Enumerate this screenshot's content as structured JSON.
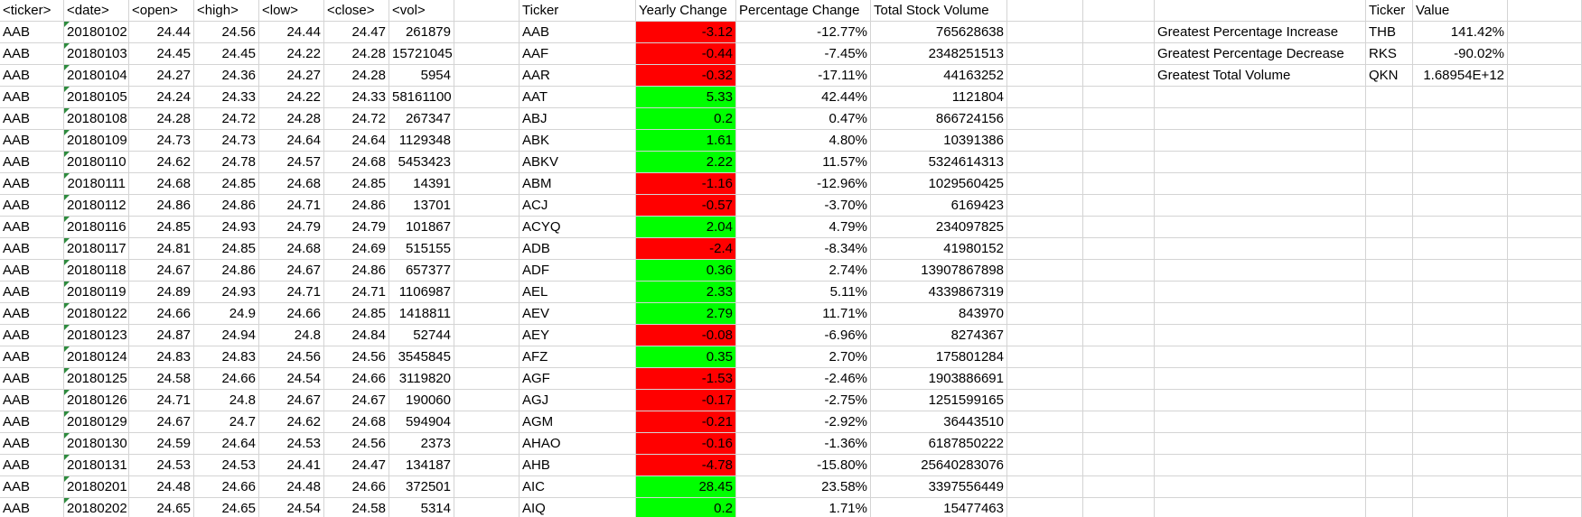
{
  "raw_headers": [
    "<ticker>",
    "<date>",
    "<open>",
    "<high>",
    "<low>",
    "<close>",
    "<vol>"
  ],
  "raw_rows": [
    [
      "AAB",
      "20180102",
      "24.44",
      "24.56",
      "24.44",
      "24.47",
      "261879"
    ],
    [
      "AAB",
      "20180103",
      "24.45",
      "24.45",
      "24.22",
      "24.28",
      "15721045"
    ],
    [
      "AAB",
      "20180104",
      "24.27",
      "24.36",
      "24.27",
      "24.28",
      "5954"
    ],
    [
      "AAB",
      "20180105",
      "24.24",
      "24.33",
      "24.22",
      "24.33",
      "58161100"
    ],
    [
      "AAB",
      "20180108",
      "24.28",
      "24.72",
      "24.28",
      "24.72",
      "267347"
    ],
    [
      "AAB",
      "20180109",
      "24.73",
      "24.73",
      "24.64",
      "24.64",
      "1129348"
    ],
    [
      "AAB",
      "20180110",
      "24.62",
      "24.78",
      "24.57",
      "24.68",
      "5453423"
    ],
    [
      "AAB",
      "20180111",
      "24.68",
      "24.85",
      "24.68",
      "24.85",
      "14391"
    ],
    [
      "AAB",
      "20180112",
      "24.86",
      "24.86",
      "24.71",
      "24.86",
      "13701"
    ],
    [
      "AAB",
      "20180116",
      "24.85",
      "24.93",
      "24.79",
      "24.79",
      "101867"
    ],
    [
      "AAB",
      "20180117",
      "24.81",
      "24.85",
      "24.68",
      "24.69",
      "515155"
    ],
    [
      "AAB",
      "20180118",
      "24.67",
      "24.86",
      "24.67",
      "24.86",
      "657377"
    ],
    [
      "AAB",
      "20180119",
      "24.89",
      "24.93",
      "24.71",
      "24.71",
      "1106987"
    ],
    [
      "AAB",
      "20180122",
      "24.66",
      "24.9",
      "24.66",
      "24.85",
      "1418811"
    ],
    [
      "AAB",
      "20180123",
      "24.87",
      "24.94",
      "24.8",
      "24.84",
      "52744"
    ],
    [
      "AAB",
      "20180124",
      "24.83",
      "24.83",
      "24.56",
      "24.56",
      "3545845"
    ],
    [
      "AAB",
      "20180125",
      "24.58",
      "24.66",
      "24.54",
      "24.66",
      "3119820"
    ],
    [
      "AAB",
      "20180126",
      "24.71",
      "24.8",
      "24.67",
      "24.67",
      "190060"
    ],
    [
      "AAB",
      "20180129",
      "24.67",
      "24.7",
      "24.62",
      "24.68",
      "594904"
    ],
    [
      "AAB",
      "20180130",
      "24.59",
      "24.64",
      "24.53",
      "24.56",
      "2373"
    ],
    [
      "AAB",
      "20180131",
      "24.53",
      "24.53",
      "24.41",
      "24.47",
      "134187"
    ],
    [
      "AAB",
      "20180201",
      "24.48",
      "24.66",
      "24.48",
      "24.66",
      "372501"
    ],
    [
      "AAB",
      "20180202",
      "24.65",
      "24.65",
      "24.54",
      "24.58",
      "5314"
    ]
  ],
  "summary_headers": [
    "Ticker",
    "Yearly Change",
    "Percentage Change",
    "Total Stock Volume"
  ],
  "summary_rows": [
    [
      "AAB",
      "-3.12",
      "-12.77%",
      "765628638"
    ],
    [
      "AAF",
      "-0.44",
      "-7.45%",
      "2348251513"
    ],
    [
      "AAR",
      "-0.32",
      "-17.11%",
      "44163252"
    ],
    [
      "AAT",
      "5.33",
      "42.44%",
      "1121804"
    ],
    [
      "ABJ",
      "0.2",
      "0.47%",
      "866724156"
    ],
    [
      "ABK",
      "1.61",
      "4.80%",
      "10391386"
    ],
    [
      "ABKV",
      "2.22",
      "11.57%",
      "5324614313"
    ],
    [
      "ABM",
      "-1.16",
      "-12.96%",
      "1029560425"
    ],
    [
      "ACJ",
      "-0.57",
      "-3.70%",
      "6169423"
    ],
    [
      "ACYQ",
      "2.04",
      "4.79%",
      "234097825"
    ],
    [
      "ADB",
      "-2.4",
      "-8.34%",
      "41980152"
    ],
    [
      "ADF",
      "0.36",
      "2.74%",
      "13907867898"
    ],
    [
      "AEL",
      "2.33",
      "5.11%",
      "4339867319"
    ],
    [
      "AEV",
      "2.79",
      "11.71%",
      "843970"
    ],
    [
      "AEY",
      "-0.08",
      "-6.96%",
      "8274367"
    ],
    [
      "AFZ",
      "0.35",
      "2.70%",
      "175801284"
    ],
    [
      "AGF",
      "-1.53",
      "-2.46%",
      "1903886691"
    ],
    [
      "AGJ",
      "-0.17",
      "-2.75%",
      "1251599165"
    ],
    [
      "AGM",
      "-0.21",
      "-2.92%",
      "36443510"
    ],
    [
      "AHAO",
      "-0.16",
      "-1.36%",
      "6187850222"
    ],
    [
      "AHB",
      "-4.78",
      "-15.80%",
      "25640283076"
    ],
    [
      "AIC",
      "28.45",
      "23.58%",
      "3397556449"
    ],
    [
      "AIQ",
      "0.2",
      "1.71%",
      "15477463"
    ]
  ],
  "greatest_headers": [
    "Ticker",
    "Value"
  ],
  "greatest_rows": [
    [
      "Greatest Percentage Increase",
      "THB",
      "141.42%"
    ],
    [
      "Greatest Percentage Decrease",
      "RKS",
      "-90.02%"
    ],
    [
      "Greatest Total Volume",
      "QKN",
      "1.68954E+12"
    ]
  ],
  "colors": {
    "positive": "#00ff00",
    "negative": "#ff0000",
    "gridline": "#d4d4d4",
    "comment_marker": "#2e8b3e"
  }
}
